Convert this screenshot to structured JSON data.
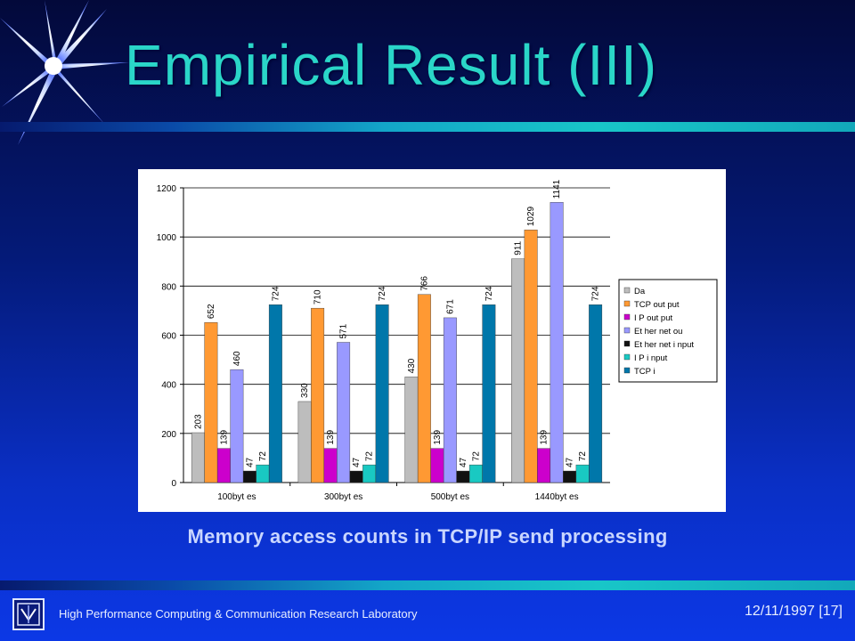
{
  "slide": {
    "title": "Empirical Result (III)",
    "caption": "Memory access counts in TCP/IP send processing",
    "footer_lab": "High Performance Computing & Communication Research Laboratory",
    "footer_date": "12/11/1997",
    "page_number": "[17]",
    "logo_icon": "lab-logo-icon",
    "decor_icon": "starburst-icon"
  },
  "colors": {
    "title": "#2ad6c8",
    "background_top": "#03093a",
    "background_bottom": "#0c38e6"
  },
  "chart_data": {
    "type": "bar",
    "title": "",
    "xlabel": "",
    "ylabel": "",
    "categories": [
      "100byt es",
      "300byt es",
      "500byt es",
      "1440byt es"
    ],
    "ylim": [
      0,
      1200
    ],
    "yticks": [
      0,
      200,
      400,
      600,
      800,
      1000,
      1200
    ],
    "grid": true,
    "legend_position": "right",
    "series": [
      {
        "name": "Da",
        "color": "#bdbdbd",
        "values": [
          203,
          330,
          430,
          911
        ]
      },
      {
        "name": "TCP out put",
        "color": "#ff9933",
        "values": [
          652,
          710,
          766,
          1029
        ]
      },
      {
        "name": "I P out put",
        "color": "#cc00cc",
        "values": [
          139,
          139,
          139,
          139
        ]
      },
      {
        "name": "Et her net ou",
        "color": "#9999ff",
        "values": [
          460,
          571,
          671,
          1141
        ]
      },
      {
        "name": "Et her net i nput",
        "color": "#111111",
        "values": [
          47,
          47,
          47,
          47
        ]
      },
      {
        "name": "I P i nput",
        "color": "#19c9c2",
        "values": [
          72,
          72,
          72,
          72
        ]
      },
      {
        "name": "TCP i",
        "color": "#0077aa",
        "values": [
          724,
          724,
          724,
          724
        ]
      }
    ]
  }
}
